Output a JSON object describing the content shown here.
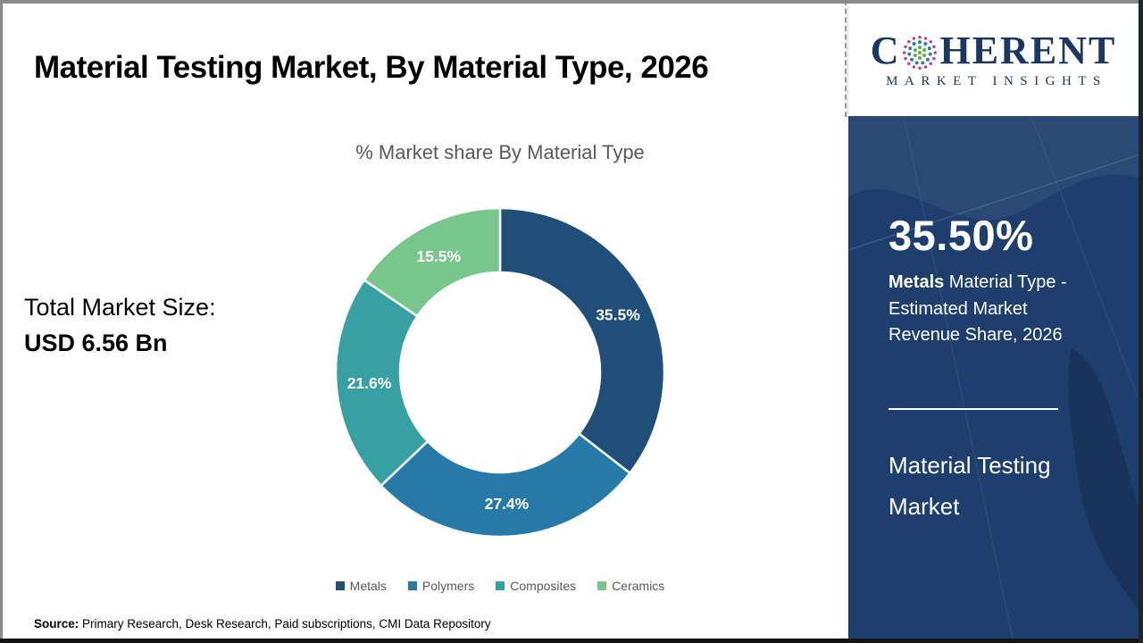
{
  "header": {
    "title": "Material Testing Market, By Material Type, 2026",
    "logo": {
      "prefix": "C",
      "suffix": "HERENT",
      "subtitle": "MARKET INSIGHTS",
      "text_color": "#1b3764",
      "globe_colors": {
        "inner": "#62b144",
        "middle": "#2f7ca6",
        "outer": "#c2407f"
      }
    }
  },
  "left_panel": {
    "label": "Total Market Size:",
    "value": "USD 6.56 Bn"
  },
  "chart": {
    "subtitle": "% Market share By Material Type"
  },
  "chart_data": {
    "type": "pie",
    "donut": true,
    "title": "% Market share By Material Type",
    "categories": [
      "Metals",
      "Polymers",
      "Composites",
      "Ceramics"
    ],
    "values": [
      35.5,
      27.4,
      21.6,
      15.5
    ],
    "labels": [
      "35.5%",
      "27.4%",
      "21.6%",
      "15.5%"
    ],
    "colors": [
      "#1F4E79",
      "#2779A7",
      "#36A0A2",
      "#77C68C"
    ],
    "start_angle_deg": 0,
    "direction": "clockwise",
    "legend_position": "bottom",
    "total_market_size": "USD 6.56 Bn"
  },
  "sidebar": {
    "bg_color": "#1E3F6E",
    "highlight_value": "35.50%",
    "highlight_bold": "Metals",
    "highlight_rest": " Material Type - Estimated Market Revenue Share, 2026",
    "market_name": "Material Testing Market"
  },
  "footer": {
    "source_label": "Source:",
    "source_text": " Primary Research, Desk Research, Paid subscriptions, CMI Data Repository"
  }
}
